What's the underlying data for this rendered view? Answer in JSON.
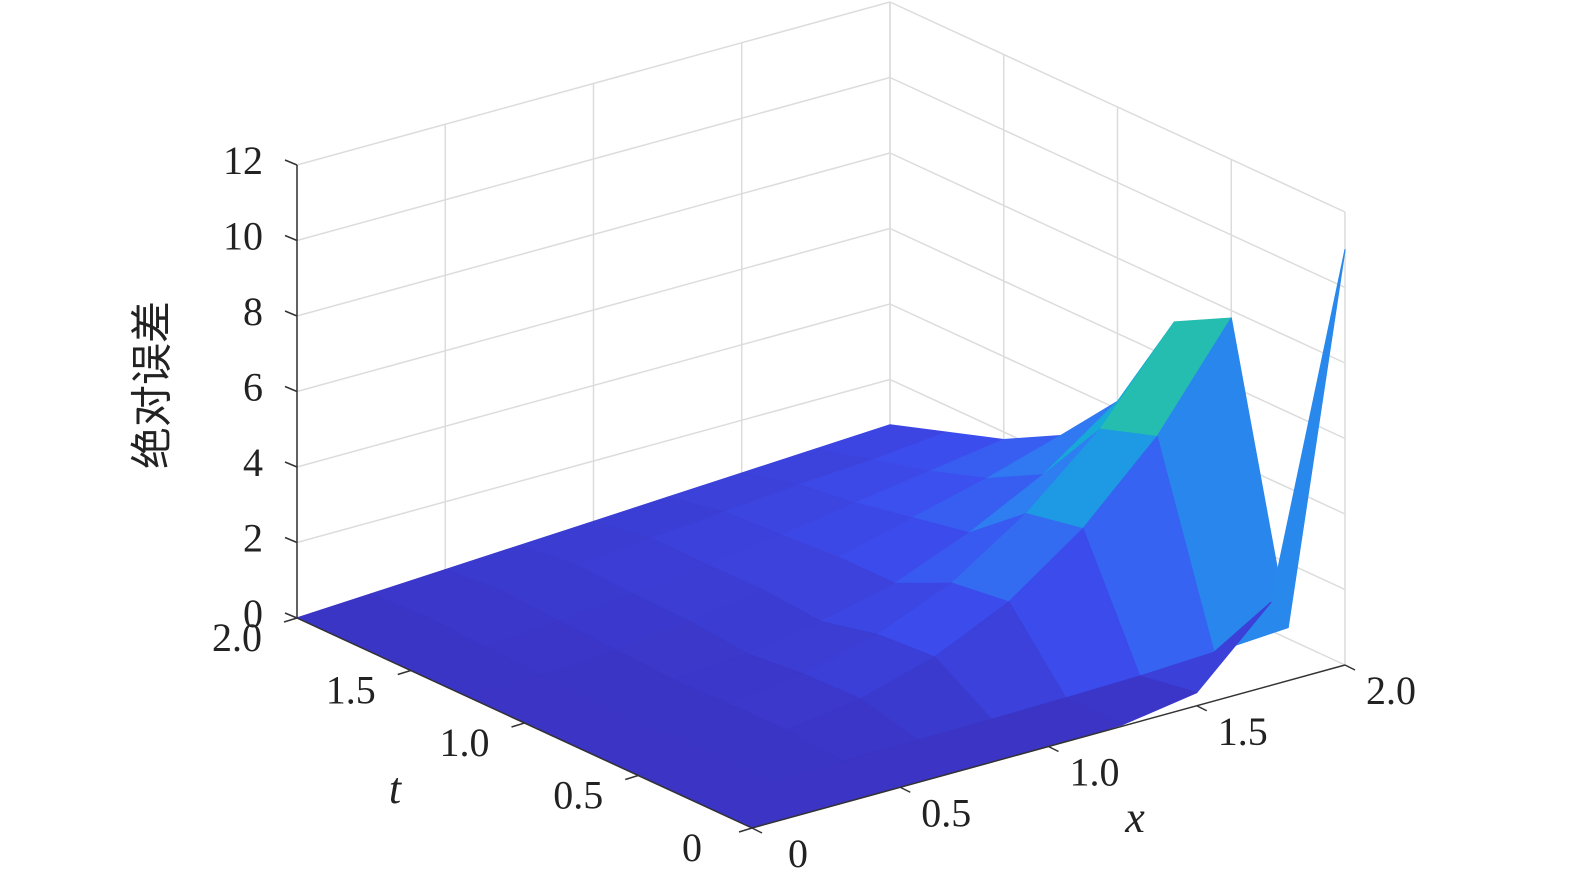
{
  "chart_data": {
    "type": "surface",
    "xlabel": "x",
    "ylabel": "t",
    "zlabel": "绝对误差",
    "x": [
      0,
      0.25,
      0.5,
      0.75,
      1,
      1.25,
      1.5,
      1.75,
      2
    ],
    "y": [
      0,
      0.25,
      0.5,
      0.75,
      1,
      1.25,
      1.5,
      1.75,
      2
    ],
    "z": [
      [
        0,
        0,
        0,
        0,
        0,
        0.04,
        0.35,
        2.2,
        11
      ],
      [
        0,
        0,
        0,
        0.01,
        0.02,
        0.05,
        0.09,
        0.18,
        0.3
      ],
      [
        0,
        0.02,
        0.12,
        0.41,
        0.98,
        1.9,
        3.3,
        5.2,
        7.8
      ],
      [
        0,
        0.01,
        0.11,
        0.37,
        0.88,
        1.7,
        3.0,
        4.7,
        7.0
      ],
      [
        0,
        0.01,
        0.07,
        0.22,
        0.53,
        1.0,
        1.8,
        2.8,
        4.2
      ],
      [
        0,
        0.04,
        0.16,
        0.37,
        0.65,
        1.0,
        1.5,
        2.0,
        2.6
      ],
      [
        0,
        0.08,
        0.23,
        0.41,
        0.64,
        0.89,
        1.2,
        1.5,
        1.8
      ],
      [
        0,
        0.16,
        0.33,
        0.49,
        0.65,
        0.81,
        0.98,
        1.1,
        1.3
      ],
      [
        0,
        0.1,
        0.2,
        0.3,
        0.4,
        0.5,
        0.6,
        0.7,
        0.8
      ]
    ],
    "xlim": [
      0,
      2
    ],
    "ylim": [
      0,
      2
    ],
    "zlim": [
      0,
      12
    ],
    "xticks": [
      0,
      0.5,
      {
        "value": 1,
        "label": "1.0"
      },
      1.5,
      {
        "value": 2,
        "label": "2.0"
      }
    ],
    "yticks": [
      0,
      0.5,
      {
        "value": 1,
        "label": "1.0"
      },
      1.5,
      {
        "value": 2,
        "label": "2.0"
      }
    ],
    "zticks": [
      0,
      2,
      4,
      6,
      8,
      10,
      12
    ],
    "grid": true,
    "colormap": [
      "#3b34c4",
      "#3c4ef0",
      "#2f7cf2",
      "#16a6dc",
      "#1cbcb4",
      "#6ac48a",
      "#b9c25c",
      "#f0b83c",
      "#f7e82a"
    ]
  }
}
